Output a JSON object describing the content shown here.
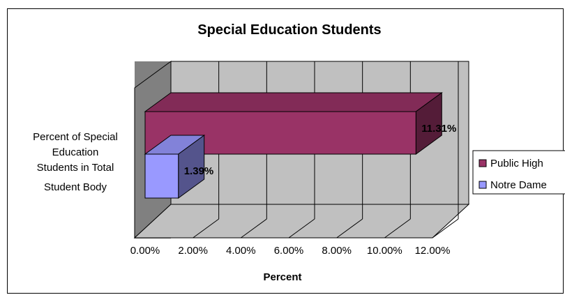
{
  "chart_data": {
    "type": "bar",
    "orientation": "horizontal",
    "style": "3d",
    "title": "Special Education Students",
    "xlabel": "Percent",
    "ylabel": "",
    "categories": [
      "Percent of Special Education Students in Total Student Body"
    ],
    "category_lines": [
      "Percent of Special",
      "Education",
      "Students in Total",
      "Student Body"
    ],
    "xlim": [
      0,
      12
    ],
    "xticks": [
      "0.00%",
      "2.00%",
      "4.00%",
      "6.00%",
      "8.00%",
      "10.00%",
      "12.00%"
    ],
    "grid": true,
    "legend_position": "right",
    "series": [
      {
        "name": "Public High",
        "values": [
          11.31
        ],
        "label": "11.31%",
        "color": "#993366"
      },
      {
        "name": "Notre Dame",
        "values": [
          1.39
        ],
        "label": "1.39%",
        "color": "#9999ff"
      }
    ]
  }
}
